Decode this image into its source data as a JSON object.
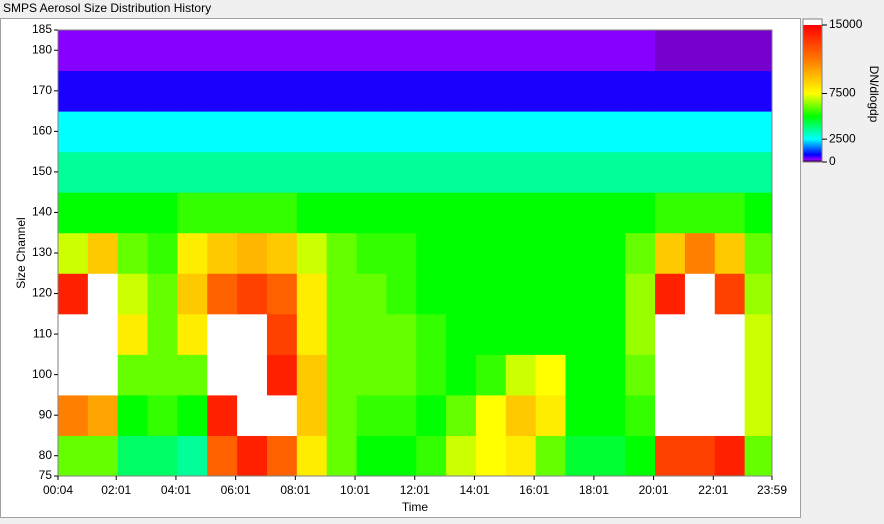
{
  "window_title": "SMPS Aerosol Size Distribution History",
  "chart_data": {
    "type": "heatmap",
    "xlabel": "Time",
    "ylabel": "Size Channel",
    "xlim": [
      4,
      1439
    ],
    "xticks": [
      {
        "value": 4,
        "label": "00:04"
      },
      {
        "value": 121,
        "label": "02:01"
      },
      {
        "value": 241,
        "label": "04:01"
      },
      {
        "value": 361,
        "label": "06:01"
      },
      {
        "value": 481,
        "label": "08:01"
      },
      {
        "value": 601,
        "label": "10:01"
      },
      {
        "value": 721,
        "label": "12:01"
      },
      {
        "value": 841,
        "label": "14:01"
      },
      {
        "value": 961,
        "label": "16:01"
      },
      {
        "value": 1081,
        "label": "18:01"
      },
      {
        "value": 1201,
        "label": "20:01"
      },
      {
        "value": 1321,
        "label": "22:01"
      },
      {
        "value": 1439,
        "label": "23:59"
      }
    ],
    "ylim": [
      75,
      185
    ],
    "yticks": [
      75,
      80,
      90,
      100,
      110,
      120,
      130,
      140,
      150,
      160,
      170,
      180,
      185
    ],
    "x_edges": [
      4,
      64,
      124,
      184,
      244,
      304,
      364,
      424,
      484,
      544,
      604,
      664,
      724,
      784,
      844,
      904,
      964,
      1024,
      1084,
      1144,
      1204,
      1264,
      1324,
      1384,
      1439
    ],
    "y_edges": [
      75,
      85,
      95,
      105,
      115,
      125,
      135,
      145,
      155,
      165,
      175,
      185
    ],
    "z": [
      [
        6000,
        6000,
        4000,
        4000,
        3500,
        12000,
        14000,
        12000,
        8000,
        6000,
        5000,
        5000,
        5500,
        7000,
        7500,
        8000,
        6000,
        4500,
        4500,
        5000,
        13000,
        13000,
        14000,
        6000
      ],
      [
        11000,
        10000,
        5000,
        5500,
        5000,
        14000,
        16000,
        16000,
        9000,
        6000,
        5500,
        5500,
        5000,
        6000,
        7500,
        9000,
        8000,
        5000,
        5000,
        5500,
        16000,
        16000,
        16000,
        7000
      ],
      [
        16000,
        16000,
        6000,
        6000,
        6000,
        16000,
        16000,
        14000,
        9000,
        6000,
        6000,
        6000,
        5500,
        5000,
        5500,
        7000,
        7500,
        5000,
        5000,
        6000,
        16000,
        16000,
        16000,
        7000
      ],
      [
        16000,
        16000,
        8000,
        6000,
        8000,
        16000,
        16000,
        13000,
        8000,
        6000,
        6000,
        6000,
        5500,
        5000,
        5000,
        5000,
        5000,
        5000,
        5000,
        6500,
        16000,
        16000,
        16000,
        7000
      ],
      [
        14000,
        16000,
        7000,
        6000,
        9000,
        12000,
        13000,
        12000,
        8000,
        6000,
        6000,
        5500,
        5000,
        5000,
        5000,
        5000,
        5000,
        5000,
        5000,
        6500,
        14000,
        16000,
        13000,
        6500
      ],
      [
        7000,
        9000,
        6000,
        5500,
        8000,
        9000,
        9500,
        9000,
        7000,
        6000,
        5500,
        5500,
        5000,
        5000,
        5000,
        5000,
        5000,
        5000,
        5000,
        6000,
        9000,
        11000,
        9000,
        6000
      ],
      [
        5000,
        5000,
        5000,
        5000,
        5500,
        5500,
        5500,
        5500,
        5000,
        5000,
        5000,
        5000,
        5000,
        5000,
        5000,
        5000,
        5000,
        5000,
        5000,
        5000,
        5500,
        5500,
        5500,
        5000
      ],
      [
        3500,
        3500,
        3500,
        3500,
        3500,
        3500,
        3500,
        3500,
        3500,
        3500,
        3500,
        3500,
        3500,
        3500,
        3500,
        3500,
        3500,
        3500,
        3500,
        3500,
        3500,
        3500,
        3500,
        3500
      ],
      [
        2500,
        2500,
        2500,
        2500,
        2500,
        2500,
        2500,
        2500,
        2500,
        2500,
        2500,
        2500,
        2500,
        2500,
        2500,
        2500,
        2500,
        2500,
        2500,
        2500,
        2500,
        2500,
        2500,
        2500
      ],
      [
        700,
        700,
        700,
        700,
        700,
        700,
        700,
        700,
        700,
        700,
        700,
        700,
        700,
        700,
        700,
        700,
        700,
        700,
        700,
        700,
        700,
        700,
        700,
        700
      ],
      [
        300,
        300,
        300,
        300,
        300,
        300,
        300,
        300,
        300,
        300,
        300,
        300,
        300,
        300,
        300,
        300,
        300,
        300,
        300,
        300,
        200,
        200,
        200,
        200
      ]
    ],
    "colorbar": {
      "label": "DN/dlogdp",
      "lim": [
        0,
        15000
      ],
      "ticks": [
        0,
        2500,
        7500,
        15000
      ]
    },
    "colorscale": [
      {
        "value": 0,
        "color": "#000000"
      },
      {
        "value": 250,
        "color": "#9400ff"
      },
      {
        "value": 800,
        "color": "#0000ff"
      },
      {
        "value": 2500,
        "color": "#00ffff"
      },
      {
        "value": 5000,
        "color": "#00ff00"
      },
      {
        "value": 7500,
        "color": "#ffff00"
      },
      {
        "value": 11000,
        "color": "#ff8000"
      },
      {
        "value": 15000,
        "color": "#ff0000"
      }
    ],
    "over_color": "#ffffff"
  }
}
